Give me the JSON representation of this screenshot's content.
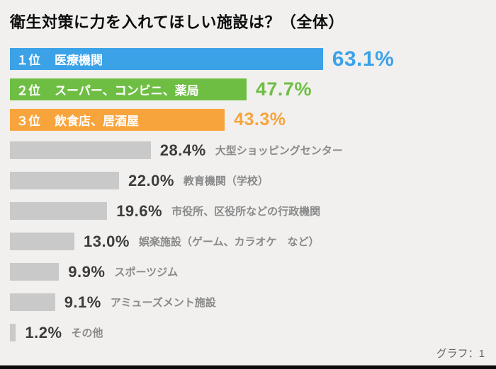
{
  "page": {
    "footer": "グラフ：1"
  },
  "colors": {
    "background": "#f1f0ee",
    "rank1_blue": "#3ba2e8",
    "rank2_green": "#6fbe44",
    "rank3_orange": "#f8a43c",
    "gray_bar": "#c9c9c9",
    "gray_value_text": "#3c3c3c",
    "gray_label_text": "#8a8a8a"
  },
  "chart_data": {
    "type": "bar",
    "orientation": "horizontal",
    "title": "衛生対策に力を入れてほしい施設は？（全体）",
    "unit": "%",
    "xlim": [
      0,
      70
    ],
    "grid": false,
    "legend": "none",
    "categories": [
      "医療機関",
      "スーパー、コンビニ、薬局",
      "飲食店、居酒屋",
      "大型ショッピングセンター",
      "教育機関（学校）",
      "市役所、区役所などの行政機関",
      "娯楽施設（ゲーム、カラオケ　など）",
      "スポーツジム",
      "アミューズメント施設",
      "その他"
    ],
    "values": [
      63.1,
      47.7,
      43.3,
      28.4,
      22.0,
      19.6,
      13.0,
      9.9,
      9.1,
      1.2
    ],
    "bars": [
      {
        "rank": "１位",
        "label": "医療機関",
        "value": 63.1,
        "value_label": "63.1%",
        "color": "#3ba2e8",
        "highlight": true
      },
      {
        "rank": "２位",
        "label": "スーパー、コンビニ、薬局",
        "value": 47.7,
        "value_label": "47.7%",
        "color": "#6fbe44",
        "highlight": true
      },
      {
        "rank": "３位",
        "label": "飲食店、居酒屋",
        "value": 43.3,
        "value_label": "43.3%",
        "color": "#f8a43c",
        "highlight": true
      },
      {
        "label": "大型ショッピングセンター",
        "value": 28.4,
        "value_label": "28.4%",
        "color": "#c9c9c9",
        "highlight": false
      },
      {
        "label": "教育機関（学校）",
        "value": 22.0,
        "value_label": "22.0%",
        "color": "#c9c9c9",
        "highlight": false
      },
      {
        "label": "市役所、区役所などの行政機関",
        "value": 19.6,
        "value_label": "19.6%",
        "color": "#c9c9c9",
        "highlight": false
      },
      {
        "label": "娯楽施設（ゲーム、カラオケ　など）",
        "value": 13.0,
        "value_label": "13.0%",
        "color": "#c9c9c9",
        "highlight": false
      },
      {
        "label": "スポーツジム",
        "value": 9.9,
        "value_label": "9.9%",
        "color": "#c9c9c9",
        "highlight": false
      },
      {
        "label": "アミューズメント施設",
        "value": 9.1,
        "value_label": "9.1%",
        "color": "#c9c9c9",
        "highlight": false
      },
      {
        "label": "その他",
        "value": 1.2,
        "value_label": "1.2%",
        "color": "#c9c9c9",
        "highlight": false
      }
    ]
  }
}
